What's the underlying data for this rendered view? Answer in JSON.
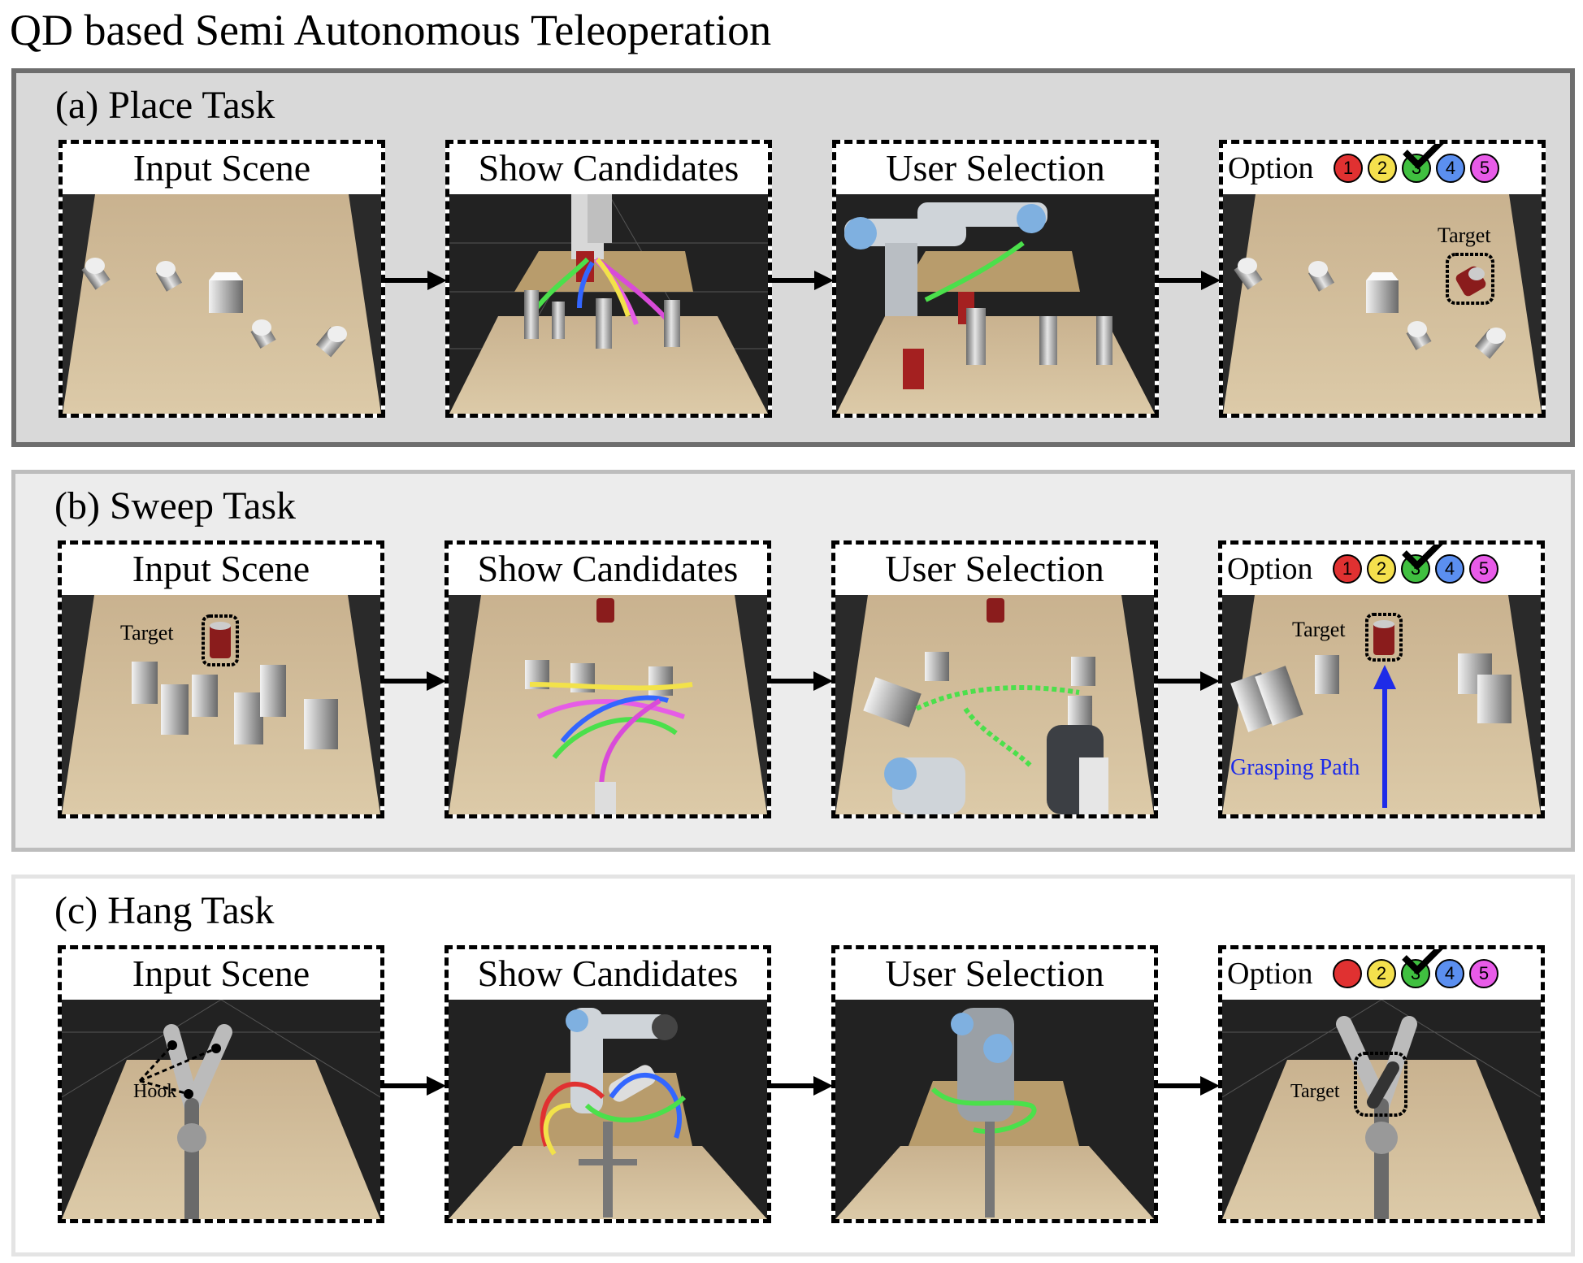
{
  "title": "QD based Semi Autonomous Teleoperation",
  "panel_titles": [
    "Input Scene",
    "Show Candidates",
    "User Selection"
  ],
  "option_label": "Option",
  "options": [
    {
      "num": "1",
      "color": "#e03131"
    },
    {
      "num": "2",
      "color": "#f4e04d"
    },
    {
      "num": "3",
      "color": "#40c040"
    },
    {
      "num": "4",
      "color": "#5b8ff0"
    },
    {
      "num": "5",
      "color": "#e85be8"
    }
  ],
  "selected_option": "3",
  "sections": [
    {
      "label": "(a) Place Task",
      "annotations": {
        "target": "Target"
      }
    },
    {
      "label": "(b) Sweep Task",
      "annotations": {
        "target_input": "Target",
        "target_option": "Target",
        "grasping_path": "Grasping Path"
      }
    },
    {
      "label": "(c) Hang Task",
      "annotations": {
        "hook": "Hook",
        "target": "Target"
      }
    }
  ],
  "colors": {
    "place_bg": "#d9d9d9",
    "sweep_bg": "#ececec",
    "hang_bg": "#ffffff",
    "grasp_path": "#1e2be8",
    "table": "#cdb896",
    "floor": "#2a2a2a"
  }
}
